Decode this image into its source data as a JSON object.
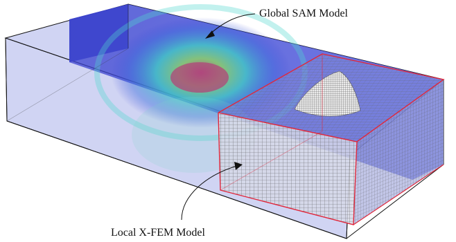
{
  "annotations": {
    "global_label": "Global SAM Model",
    "local_label": "Local X-FEM Model"
  },
  "colors": {
    "global_box_fill": "#b9c0ee",
    "global_box_stroke": "#111111",
    "field_blue": "#3a46d8",
    "field_cyan": "#3ad0c8",
    "field_green": "#7ed06a",
    "field_core": "#c0507a",
    "local_box_stroke": "#e0283c",
    "mesh_line": "#6a6a6a",
    "crack_surface": "#e8e8e8"
  }
}
